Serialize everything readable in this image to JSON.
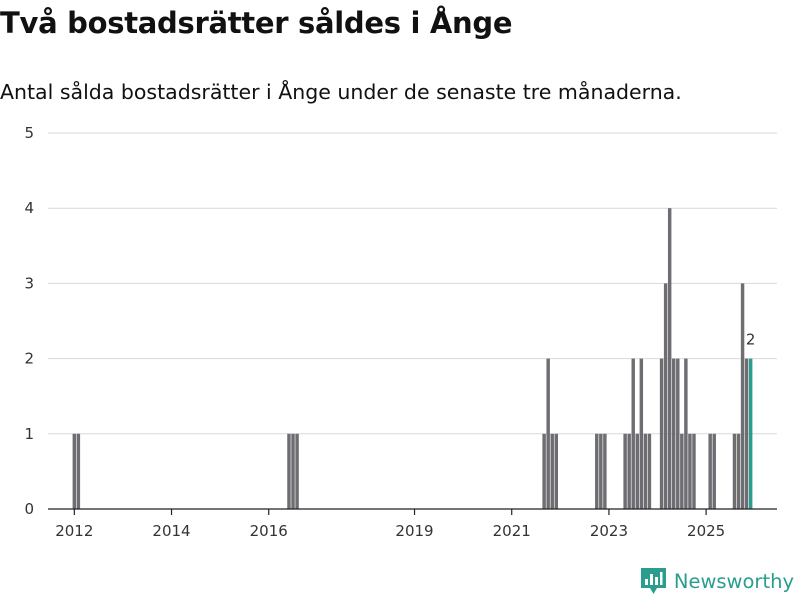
{
  "header": {
    "title": "Två bostadsrätter såldes i Ånge",
    "subtitle": "Antal sålda bostadsrätter i Ånge under de senaste tre månaderna."
  },
  "brand": {
    "name": "Newsworthy",
    "color": "#2a9d8f"
  },
  "colors": {
    "bar": "#6d6d72",
    "highlight": "#2a9d8f",
    "grid": "#d9d9d9",
    "axis": "#222222"
  },
  "chart_data": {
    "type": "bar",
    "title": "Två bostadsrätter såldes i Ånge",
    "subtitle": "Antal sålda bostadsrätter i Ånge under de senaste tre månaderna.",
    "xlabel": "",
    "ylabel": "",
    "ylim": [
      0,
      5
    ],
    "yticks": [
      0,
      1,
      2,
      3,
      4,
      5
    ],
    "xlim": [
      "2011-07",
      "2026-07"
    ],
    "xticks": [
      {
        "label": "2012",
        "date": "2012-01"
      },
      {
        "label": "2014",
        "date": "2014-01"
      },
      {
        "label": "2016",
        "date": "2016-01"
      },
      {
        "label": "2019",
        "date": "2019-01"
      },
      {
        "label": "2021",
        "date": "2021-01"
      },
      {
        "label": "2023",
        "date": "2023-01"
      },
      {
        "label": "2025",
        "date": "2025-01"
      }
    ],
    "grid": true,
    "highlight_label": "2",
    "series": [
      {
        "name": "Antal sålda bostadsrätter",
        "points": [
          {
            "date": "2012-01",
            "value": 1
          },
          {
            "date": "2012-02",
            "value": 1
          },
          {
            "date": "2016-06",
            "value": 1
          },
          {
            "date": "2016-07",
            "value": 1
          },
          {
            "date": "2016-08",
            "value": 1
          },
          {
            "date": "2021-09",
            "value": 1
          },
          {
            "date": "2021-10",
            "value": 2
          },
          {
            "date": "2021-11",
            "value": 1
          },
          {
            "date": "2021-12",
            "value": 1
          },
          {
            "date": "2022-10",
            "value": 1
          },
          {
            "date": "2022-11",
            "value": 1
          },
          {
            "date": "2022-12",
            "value": 1
          },
          {
            "date": "2023-05",
            "value": 1
          },
          {
            "date": "2023-06",
            "value": 1
          },
          {
            "date": "2023-07",
            "value": 2
          },
          {
            "date": "2023-08",
            "value": 1
          },
          {
            "date": "2023-09",
            "value": 2
          },
          {
            "date": "2023-10",
            "value": 1
          },
          {
            "date": "2023-11",
            "value": 1
          },
          {
            "date": "2024-02",
            "value": 2
          },
          {
            "date": "2024-03",
            "value": 3
          },
          {
            "date": "2024-04",
            "value": 4
          },
          {
            "date": "2024-05",
            "value": 2
          },
          {
            "date": "2024-06",
            "value": 2
          },
          {
            "date": "2024-07",
            "value": 1
          },
          {
            "date": "2024-08",
            "value": 2
          },
          {
            "date": "2024-09",
            "value": 1
          },
          {
            "date": "2024-10",
            "value": 1
          },
          {
            "date": "2025-02",
            "value": 1
          },
          {
            "date": "2025-03",
            "value": 1
          },
          {
            "date": "2025-08",
            "value": 1
          },
          {
            "date": "2025-09",
            "value": 1
          },
          {
            "date": "2025-10",
            "value": 3
          },
          {
            "date": "2025-11",
            "value": 2
          },
          {
            "date": "2025-12",
            "value": 2,
            "highlight": true
          }
        ]
      }
    ]
  }
}
